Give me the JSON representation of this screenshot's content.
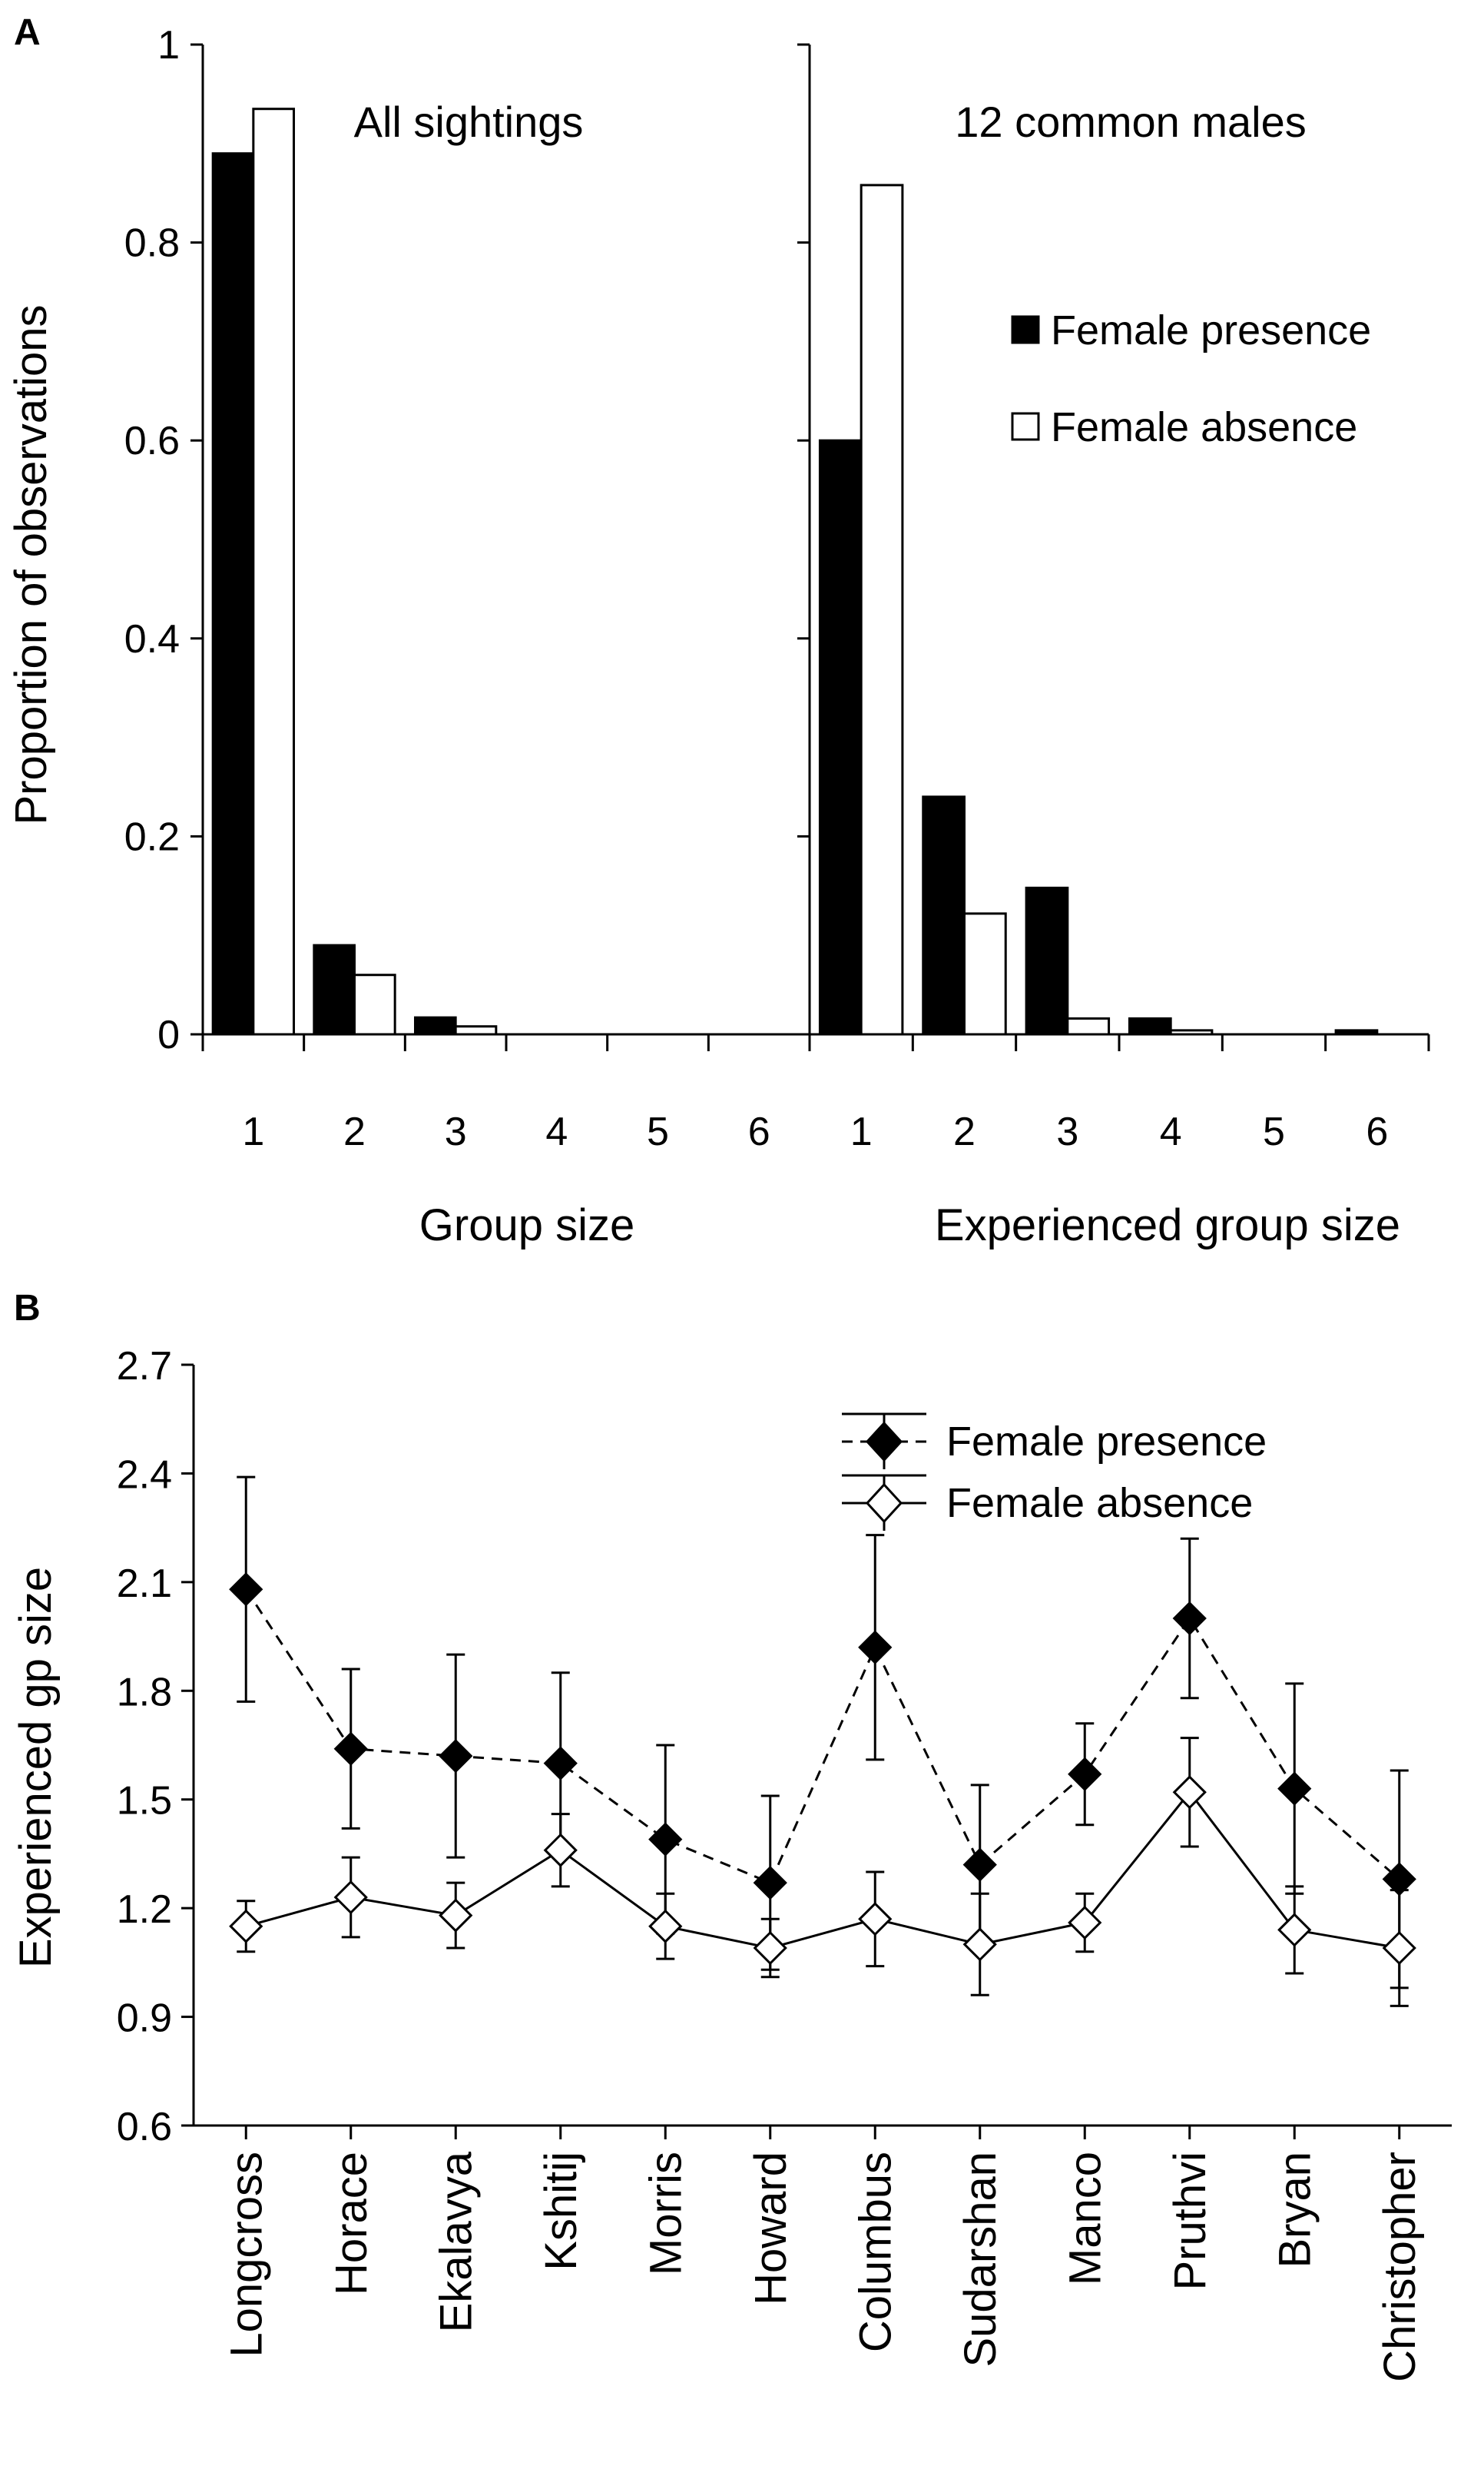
{
  "chart_data": [
    {
      "panel": "A",
      "type": "bar",
      "title": "All sightings",
      "xlabel": "Group size",
      "ylabel": "Proportion of observations",
      "categories": [
        "1",
        "2",
        "3",
        "4",
        "5",
        "6"
      ],
      "ylim": [
        0,
        1
      ],
      "yticks": [
        "0",
        "0.2",
        "0.4",
        "0.6",
        "0.8",
        "1"
      ],
      "series": [
        {
          "name": "Female presence",
          "values": [
            0.89,
            0.09,
            0.017,
            0,
            0,
            0
          ]
        },
        {
          "name": "Female absence",
          "values": [
            0.935,
            0.06,
            0.008,
            0,
            0,
            0
          ]
        }
      ]
    },
    {
      "panel": "A",
      "type": "bar",
      "title": "12 common males",
      "xlabel": "Experienced group size",
      "ylabel": "",
      "categories": [
        "1",
        "2",
        "3",
        "4",
        "5",
        "6"
      ],
      "ylim": [
        0,
        1
      ],
      "legend": [
        "Female presence",
        "Female absence"
      ],
      "series": [
        {
          "name": "Female presence",
          "values": [
            0.6,
            0.24,
            0.148,
            0.016,
            0,
            0.004
          ]
        },
        {
          "name": "Female absence",
          "values": [
            0.858,
            0.122,
            0.016,
            0.004,
            0,
            0
          ]
        }
      ]
    },
    {
      "panel": "B",
      "type": "line",
      "ylabel": "Experienced gp size",
      "categories": [
        "Longcross",
        "Horace",
        "Ekalavya",
        "Kshitij",
        "Morris",
        "Howard",
        "Columbus",
        "Sudarshan",
        "Manco",
        "Pruthvi",
        "Bryan",
        "Christopher"
      ],
      "ylim": [
        0.6,
        2.7
      ],
      "yticks": [
        "0.6",
        "0.9",
        "1.2",
        "1.5",
        "1.8",
        "2.1",
        "2.4",
        "2.7"
      ],
      "legend": [
        "Female presence",
        "Female absence"
      ],
      "series": [
        {
          "name": "Female presence",
          "values": [
            2.08,
            1.64,
            1.62,
            1.6,
            1.39,
            1.27,
            1.92,
            1.32,
            1.57,
            2.0,
            1.53,
            1.28
          ],
          "err_high": [
            2.39,
            1.86,
            1.9,
            1.85,
            1.65,
            1.51,
            2.23,
            1.54,
            1.71,
            2.22,
            1.82,
            1.58
          ],
          "err_low": [
            1.77,
            1.42,
            1.34,
            1.35,
            1.13,
            1.03,
            1.61,
            1.1,
            1.43,
            1.78,
            1.24,
            0.98
          ]
        },
        {
          "name": "Female absence",
          "values": [
            1.15,
            1.23,
            1.18,
            1.36,
            1.15,
            1.09,
            1.17,
            1.1,
            1.16,
            1.52,
            1.14,
            1.09
          ],
          "err_high": [
            1.22,
            1.34,
            1.27,
            1.46,
            1.24,
            1.17,
            1.3,
            1.24,
            1.24,
            1.67,
            1.26,
            1.25
          ],
          "err_low": [
            1.08,
            1.12,
            1.09,
            1.26,
            1.06,
            1.01,
            1.04,
            0.96,
            1.08,
            1.37,
            1.02,
            0.93
          ]
        }
      ]
    }
  ]
}
